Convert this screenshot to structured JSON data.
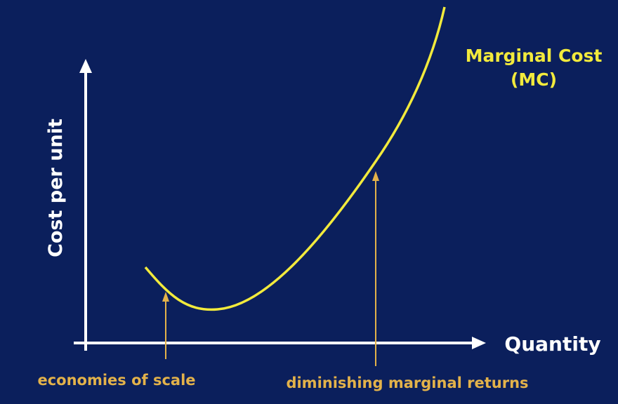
{
  "axes": {
    "y_label": "Cost per unit",
    "x_label": "Quantity"
  },
  "curve": {
    "label_lines": [
      "Marginal Cost",
      "(MC)"
    ]
  },
  "annotations": [
    "economies of scale",
    "diminishing marginal returns"
  ]
}
